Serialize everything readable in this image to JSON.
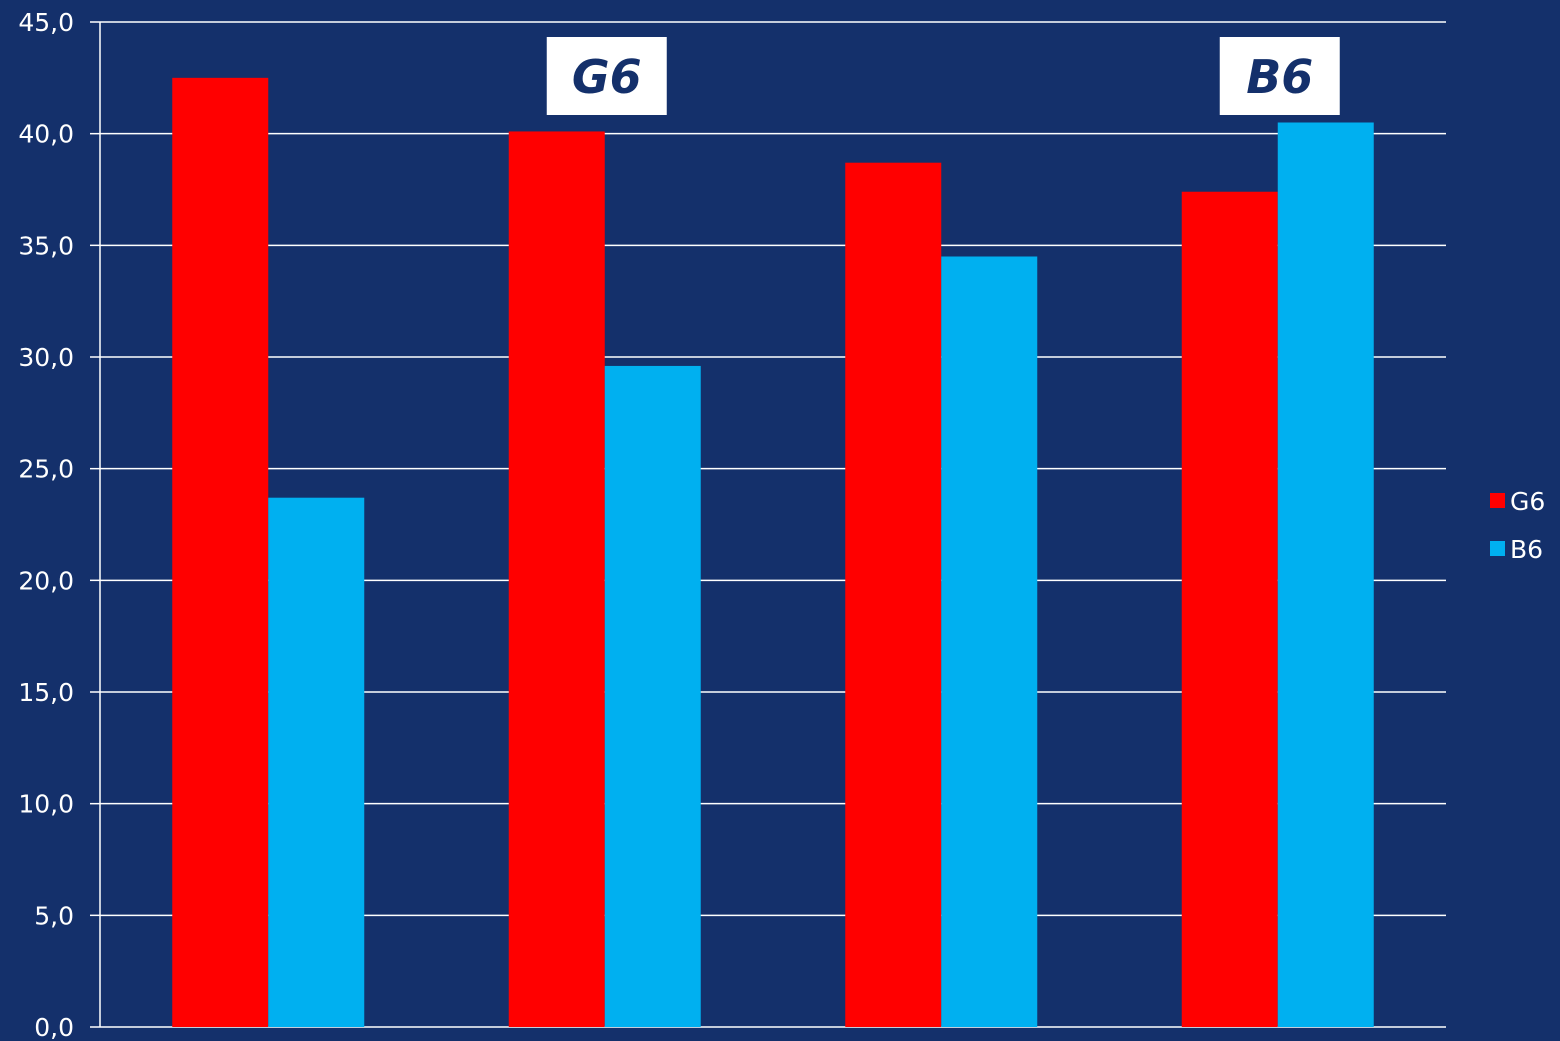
{
  "chart_data": {
    "type": "bar",
    "title": "",
    "xlabel": "",
    "ylabel": "",
    "categories": [
      "",
      "",
      "",
      ""
    ],
    "ylim": [
      0,
      45
    ],
    "yticks": [
      "0,0",
      "5,0",
      "10,0",
      "15,0",
      "20,0",
      "25,0",
      "30,0",
      "35,0",
      "40,0",
      "45,0"
    ],
    "grid": true,
    "legend_position": "right",
    "series": [
      {
        "name": "G6",
        "color": "#ff0000",
        "values": [
          42.5,
          40.1,
          38.7,
          37.4
        ]
      },
      {
        "name": "B6",
        "color": "#00b0f0",
        "values": [
          23.7,
          29.6,
          34.5,
          40.5
        ]
      }
    ],
    "annotations": [
      {
        "text": "G6",
        "category_index": 1
      },
      {
        "text": "B6",
        "category_index": 3
      }
    ]
  }
}
